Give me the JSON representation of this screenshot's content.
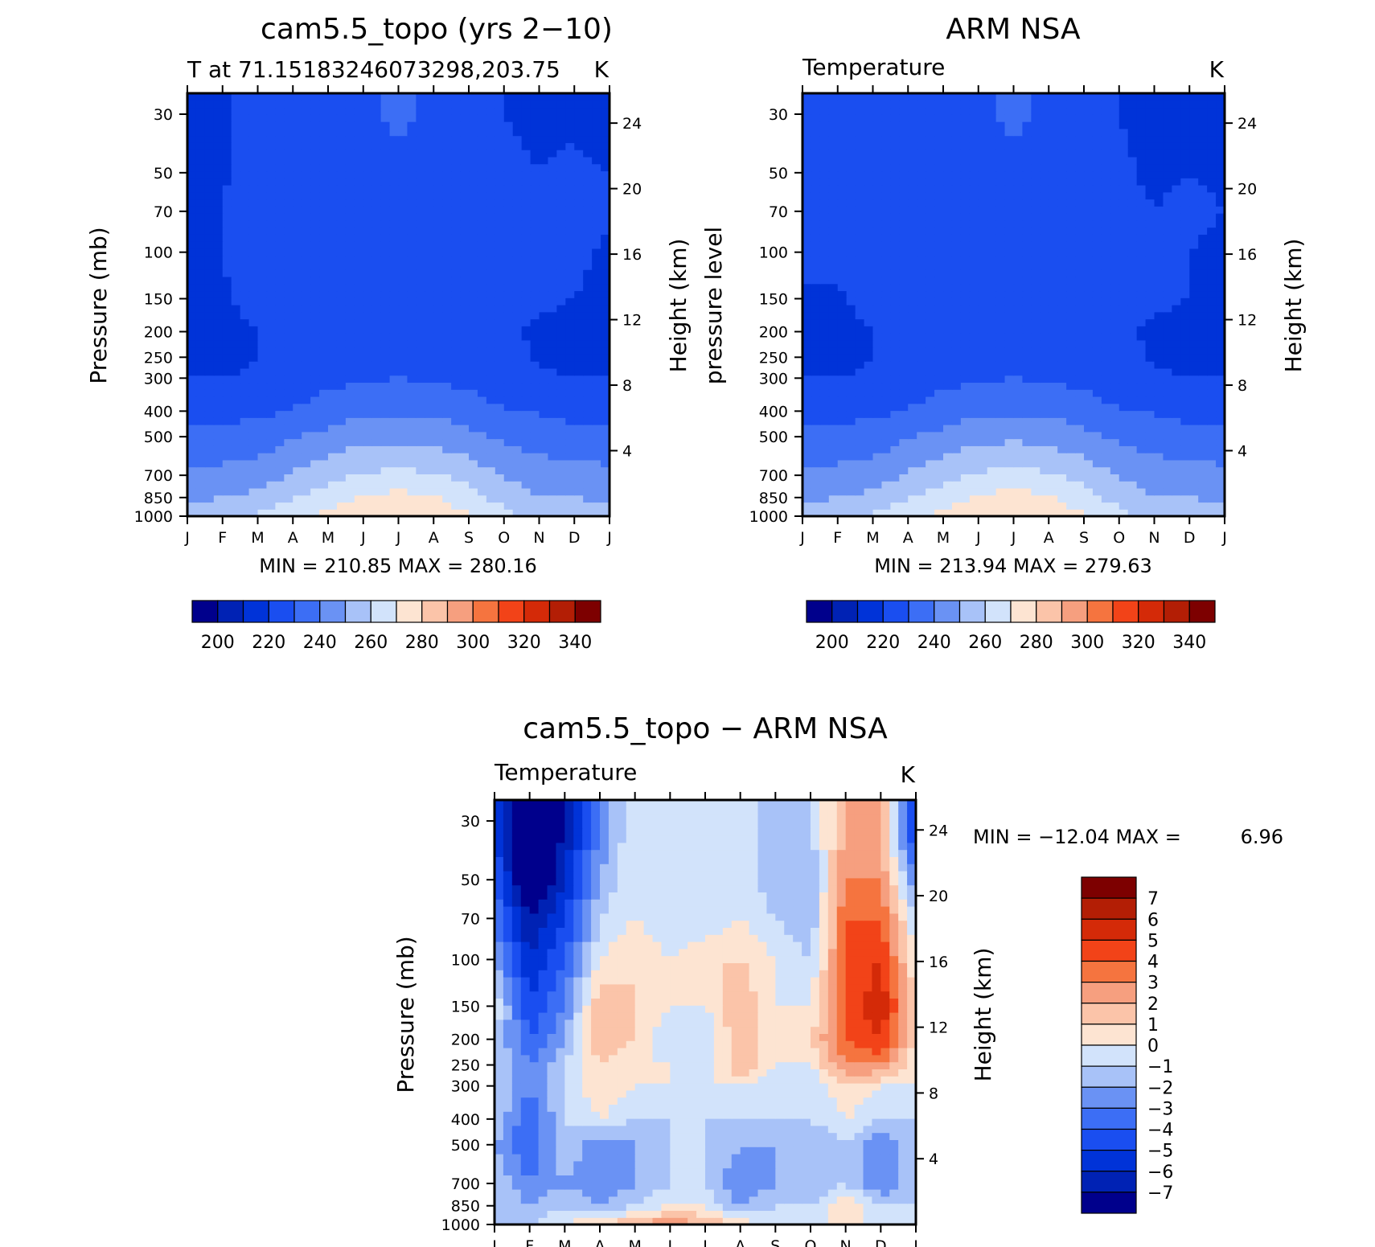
{
  "figure": {
    "panel1": {
      "title": "cam5.5_topo (yrs 2−10)",
      "subtitle_left": "T at 71.15183246073298,203.75",
      "units": "K",
      "ylabel_left": "Pressure (mb)",
      "ylabel_right": "Height (km)",
      "minmax": "MIN = 210.85 MAX = 280.16"
    },
    "panel2": {
      "title": "ARM NSA",
      "subtitle_left": "Temperature",
      "units": "K",
      "ylabel_left": "pressure level",
      "ylabel_right": "Height (km)",
      "minmax": "MIN = 213.94 MAX = 279.63"
    },
    "panel3": {
      "title": "cam5.5_topo − ARM NSA",
      "subtitle_left": "Temperature",
      "units": "K",
      "ylabel_left": "Pressure (mb)",
      "ylabel_right": "Height (km)",
      "minmax_label": "MIN = −12.04 MAX =",
      "minmax_value": "6.96"
    }
  },
  "colors": {
    "abs_palette": [
      "#00008c",
      "#0022b4",
      "#0033d8",
      "#1a4ef0",
      "#3c6ef5",
      "#6a92f4",
      "#a8c2f8",
      "#d2e3fb",
      "#fde4d2",
      "#fbc4a9",
      "#f69f7f",
      "#f5743f",
      "#f24318",
      "#d42a08",
      "#b31e05",
      "#7d0000"
    ],
    "diff_palette": [
      "#00008c",
      "#0022b4",
      "#0033d8",
      "#1a4ef0",
      "#3c6ef5",
      "#6a92f4",
      "#a8c2f8",
      "#d2e3fb",
      "#fde4d2",
      "#fbc4a9",
      "#f69f7f",
      "#f5743f",
      "#f24318",
      "#d42a08",
      "#b31e05",
      "#7d0000"
    ]
  },
  "chart_data": [
    {
      "type": "heatmap",
      "name": "model",
      "title": "cam5.5_topo (yrs 2−10)",
      "x_labels": [
        "J",
        "F",
        "M",
        "A",
        "M",
        "J",
        "J",
        "A",
        "S",
        "O",
        "N",
        "D",
        "J"
      ],
      "pressure_ticks": [
        30,
        50,
        70,
        100,
        150,
        200,
        250,
        300,
        400,
        500,
        700,
        850,
        1000
      ],
      "height_ticks": [
        4,
        8,
        12,
        16,
        20,
        24
      ],
      "ylim_mb": [
        1000,
        25
      ],
      "colorbar_ticks": [
        200,
        220,
        240,
        260,
        280,
        300,
        320,
        340
      ],
      "colorbar_levels": [
        195,
        200,
        205,
        210,
        215,
        220,
        225,
        230,
        235,
        240,
        245,
        250,
        255,
        260,
        265,
        270,
        275,
        280,
        285,
        290,
        295,
        300,
        305,
        310,
        315,
        320,
        325,
        330,
        335,
        340,
        345
      ],
      "contour_levels": [
        200,
        210,
        220,
        230,
        240,
        250,
        260,
        270,
        280,
        290,
        300,
        310,
        320,
        330,
        340
      ],
      "min": 210.85,
      "max": 280.16,
      "levels_mb": [
        1000,
        850,
        700,
        500,
        400,
        300,
        250,
        200,
        150,
        100,
        70,
        50,
        30
      ],
      "values": [
        [
          250,
          252,
          256,
          262,
          268,
          272,
          275,
          272,
          266,
          258,
          252,
          251,
          250
        ],
        [
          244,
          245,
          248,
          255,
          261,
          266,
          268,
          266,
          260,
          251,
          246,
          245,
          244
        ],
        [
          238,
          238,
          240,
          246,
          252,
          256,
          258,
          256,
          251,
          244,
          240,
          238,
          238
        ],
        [
          228,
          228,
          230,
          234,
          238,
          242,
          243,
          242,
          238,
          233,
          231,
          229,
          228
        ],
        [
          222,
          222,
          223,
          226,
          230,
          233,
          234,
          233,
          230,
          226,
          224,
          222,
          222
        ],
        [
          215,
          215,
          216,
          219,
          222,
          224,
          225,
          224,
          222,
          219,
          216,
          215,
          215
        ],
        [
          213,
          213,
          215,
          218,
          222,
          224,
          225,
          224,
          222,
          218,
          214,
          213,
          213
        ],
        [
          213,
          213,
          215,
          219,
          222,
          224,
          225,
          224,
          222,
          216,
          214,
          213,
          213
        ],
        [
          214,
          214,
          218,
          220,
          222,
          223,
          224,
          223,
          222,
          219,
          216,
          215,
          214
        ],
        [
          214,
          215,
          219,
          221,
          222,
          223,
          224,
          223,
          222,
          219,
          217,
          216,
          214
        ],
        [
          214,
          215,
          219,
          221,
          222,
          223,
          224,
          223,
          221,
          217,
          216,
          218,
          216
        ],
        [
          213,
          214,
          220,
          221,
          222,
          223,
          224,
          223,
          221,
          216,
          215,
          216,
          215
        ],
        [
          212,
          213,
          219,
          221,
          222,
          224,
          226,
          224,
          221,
          215,
          214,
          214,
          213
        ]
      ]
    },
    {
      "type": "heatmap",
      "name": "obs",
      "title": "ARM NSA",
      "x_labels": [
        "J",
        "F",
        "M",
        "A",
        "M",
        "J",
        "J",
        "A",
        "S",
        "O",
        "N",
        "D",
        "J"
      ],
      "pressure_ticks": [
        30,
        50,
        70,
        100,
        150,
        200,
        250,
        300,
        400,
        500,
        700,
        850,
        1000
      ],
      "height_ticks": [
        4,
        8,
        12,
        16,
        20,
        24
      ],
      "ylim_mb": [
        1000,
        25
      ],
      "colorbar_ticks": [
        200,
        220,
        240,
        260,
        280,
        300,
        320,
        340
      ],
      "min": 213.94,
      "max": 279.63
    },
    {
      "type": "heatmap",
      "name": "difference",
      "title": "cam5.5_topo − ARM NSA",
      "x_labels": [
        "J",
        "F",
        "M",
        "A",
        "M",
        "J",
        "J",
        "A",
        "S",
        "O",
        "N",
        "D",
        "J"
      ],
      "pressure_ticks": [
        30,
        50,
        70,
        100,
        150,
        200,
        250,
        300,
        400,
        500,
        700,
        850,
        1000
      ],
      "height_ticks": [
        4,
        8,
        12,
        16,
        20,
        24
      ],
      "ylim_mb": [
        1000,
        25
      ],
      "colorbar_ticks": [
        7,
        6,
        5,
        4,
        3,
        2,
        1,
        0,
        -1,
        -2,
        -3,
        -4,
        -5,
        -6,
        -7
      ],
      "min": -12.04,
      "max": 6.96
    }
  ]
}
